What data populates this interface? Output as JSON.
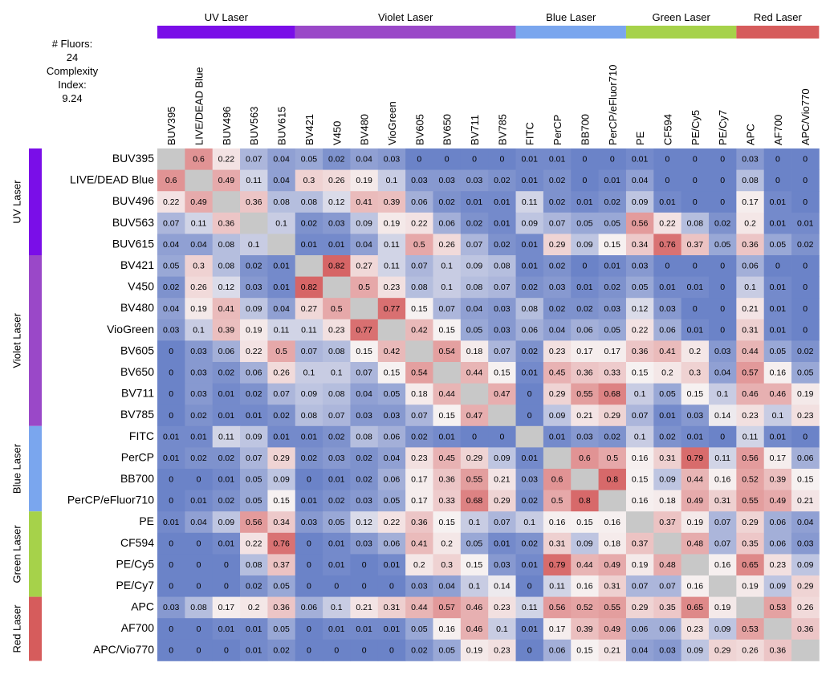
{
  "chart_data": {
    "type": "heatmap",
    "title": "",
    "info": {
      "fluors_label": "# Fluors:",
      "fluors_value": "24",
      "complexity_label_1": "Complexity",
      "complexity_label_2": "Index:",
      "complexity_value": "9.24"
    },
    "fluors": [
      "BUV395",
      "LIVE/DEAD Blue",
      "BUV496",
      "BUV563",
      "BUV615",
      "BV421",
      "V450",
      "BV480",
      "VioGreen",
      "BV605",
      "BV650",
      "BV711",
      "BV785",
      "FITC",
      "PerCP",
      "BB700",
      "PerCP/eFluor710",
      "PE",
      "CF594",
      "PE/Cy5",
      "PE/Cy7",
      "APC",
      "AF700",
      "APC/Vio770"
    ],
    "laser_groups": [
      {
        "name": "UV Laser",
        "start": 0,
        "end": 4,
        "color": "#7a0ee8"
      },
      {
        "name": "Violet Laser",
        "start": 5,
        "end": 12,
        "color": "#9a48c8"
      },
      {
        "name": "Blue Laser",
        "start": 13,
        "end": 16,
        "color": "#7aa6ee"
      },
      {
        "name": "Green Laser",
        "start": 17,
        "end": 20,
        "color": "#a6d24a"
      },
      {
        "name": "Red Laser",
        "start": 21,
        "end": 23,
        "color": "#d65c5c"
      }
    ],
    "diagonal_color": "#c8c8c8",
    "color_scale": {
      "low": "#6b83c8",
      "mid": "#f6f1f1",
      "high": "#d55f60",
      "min": 0,
      "mid_value": 0.15,
      "max": 0.85
    },
    "values": [
      [
        null,
        0.6,
        0.22,
        0.07,
        0.04,
        0.05,
        0.02,
        0.04,
        0.03,
        0,
        0,
        0,
        0,
        0.01,
        0.01,
        0,
        0,
        0.01,
        0,
        0,
        0,
        0.03,
        0,
        0
      ],
      [
        0.6,
        null,
        0.49,
        0.11,
        0.04,
        0.3,
        0.26,
        0.19,
        0.1,
        0.03,
        0.03,
        0.03,
        0.02,
        0.01,
        0.02,
        0,
        0.01,
        0.04,
        0,
        0,
        0,
        0.08,
        0,
        0
      ],
      [
        0.22,
        0.49,
        null,
        0.36,
        0.08,
        0.08,
        0.12,
        0.41,
        0.39,
        0.06,
        0.02,
        0.01,
        0.01,
        0.11,
        0.02,
        0.01,
        0.02,
        0.09,
        0.01,
        0,
        0,
        0.17,
        0.01,
        0
      ],
      [
        0.07,
        0.11,
        0.36,
        null,
        0.1,
        0.02,
        0.03,
        0.09,
        0.19,
        0.22,
        0.06,
        0.02,
        0.01,
        0.09,
        0.07,
        0.05,
        0.05,
        0.56,
        0.22,
        0.08,
        0.02,
        0.2,
        0.01,
        0.01
      ],
      [
        0.04,
        0.04,
        0.08,
        0.1,
        null,
        0.01,
        0.01,
        0.04,
        0.11,
        0.5,
        0.26,
        0.07,
        0.02,
        0.01,
        0.29,
        0.09,
        0.15,
        0.34,
        0.76,
        0.37,
        0.05,
        0.36,
        0.05,
        0.02
      ],
      [
        0.05,
        0.3,
        0.08,
        0.02,
        0.01,
        null,
        0.82,
        0.27,
        0.11,
        0.07,
        0.1,
        0.09,
        0.08,
        0.01,
        0.02,
        0,
        0.01,
        0.03,
        0,
        0,
        0,
        0.06,
        0,
        0
      ],
      [
        0.02,
        0.26,
        0.12,
        0.03,
        0.01,
        0.82,
        null,
        0.5,
        0.23,
        0.08,
        0.1,
        0.08,
        0.07,
        0.02,
        0.03,
        0.01,
        0.02,
        0.05,
        0.01,
        0.01,
        0,
        0.1,
        0.01,
        0
      ],
      [
        0.04,
        0.19,
        0.41,
        0.09,
        0.04,
        0.27,
        0.5,
        null,
        0.77,
        0.15,
        0.07,
        0.04,
        0.03,
        0.08,
        0.02,
        0.02,
        0.03,
        0.12,
        0.03,
        0,
        0,
        0.21,
        0.01,
        0
      ],
      [
        0.03,
        0.1,
        0.39,
        0.19,
        0.11,
        0.11,
        0.23,
        0.77,
        null,
        0.42,
        0.15,
        0.05,
        0.03,
        0.06,
        0.04,
        0.06,
        0.05,
        0.22,
        0.06,
        0.01,
        0,
        0.31,
        0.01,
        0
      ],
      [
        0,
        0.03,
        0.06,
        0.22,
        0.5,
        0.07,
        0.08,
        0.15,
        0.42,
        null,
        0.54,
        0.18,
        0.07,
        0.02,
        0.23,
        0.17,
        0.17,
        0.36,
        0.41,
        0.2,
        0.03,
        0.44,
        0.05,
        0.02
      ],
      [
        0,
        0.03,
        0.02,
        0.06,
        0.26,
        0.1,
        0.1,
        0.07,
        0.15,
        0.54,
        null,
        0.44,
        0.15,
        0.01,
        0.45,
        0.36,
        0.33,
        0.15,
        0.2,
        0.3,
        0.04,
        0.57,
        0.16,
        0.05
      ],
      [
        0,
        0.03,
        0.01,
        0.02,
        0.07,
        0.09,
        0.08,
        0.04,
        0.05,
        0.18,
        0.44,
        null,
        0.47,
        0,
        0.29,
        0.55,
        0.68,
        0.1,
        0.05,
        0.15,
        0.1,
        0.46,
        0.46,
        0.19
      ],
      [
        0,
        0.02,
        0.01,
        0.01,
        0.02,
        0.08,
        0.07,
        0.03,
        0.03,
        0.07,
        0.15,
        0.47,
        null,
        0,
        0.09,
        0.21,
        0.29,
        0.07,
        0.01,
        0.03,
        0.14,
        0.23,
        0.1,
        0.23
      ],
      [
        0.01,
        0.01,
        0.11,
        0.09,
        0.01,
        0.01,
        0.02,
        0.08,
        0.06,
        0.02,
        0.01,
        0,
        0,
        null,
        0.01,
        0.03,
        0.02,
        0.1,
        0.02,
        0.01,
        0,
        0.11,
        0.01,
        0
      ],
      [
        0.01,
        0.02,
        0.02,
        0.07,
        0.29,
        0.02,
        0.03,
        0.02,
        0.04,
        0.23,
        0.45,
        0.29,
        0.09,
        0.01,
        null,
        0.6,
        0.5,
        0.16,
        0.31,
        0.79,
        0.11,
        0.56,
        0.17,
        0.06
      ],
      [
        0,
        0,
        0.01,
        0.05,
        0.09,
        0,
        0.01,
        0.02,
        0.06,
        0.17,
        0.36,
        0.55,
        0.21,
        0.03,
        0.6,
        null,
        0.8,
        0.15,
        0.09,
        0.44,
        0.16,
        0.52,
        0.39,
        0.15
      ],
      [
        0,
        0.01,
        0.02,
        0.05,
        0.15,
        0.01,
        0.02,
        0.03,
        0.05,
        0.17,
        0.33,
        0.68,
        0.29,
        0.02,
        0.5,
        0.8,
        null,
        0.16,
        0.18,
        0.49,
        0.31,
        0.55,
        0.49,
        0.21
      ],
      [
        0.01,
        0.04,
        0.09,
        0.56,
        0.34,
        0.03,
        0.05,
        0.12,
        0.22,
        0.36,
        0.15,
        0.1,
        0.07,
        0.1,
        0.16,
        0.15,
        0.16,
        null,
        0.37,
        0.19,
        0.07,
        0.29,
        0.06,
        0.04
      ],
      [
        0,
        0,
        0.01,
        0.22,
        0.76,
        0,
        0.01,
        0.03,
        0.06,
        0.41,
        0.2,
        0.05,
        0.01,
        0.02,
        0.31,
        0.09,
        0.18,
        0.37,
        null,
        0.48,
        0.07,
        0.35,
        0.06,
        0.03
      ],
      [
        0,
        0,
        0,
        0.08,
        0.37,
        0,
        0.01,
        0,
        0.01,
        0.2,
        0.3,
        0.15,
        0.03,
        0.01,
        0.79,
        0.44,
        0.49,
        0.19,
        0.48,
        null,
        0.16,
        0.65,
        0.23,
        0.09
      ],
      [
        0,
        0,
        0,
        0.02,
        0.05,
        0,
        0,
        0,
        0,
        0.03,
        0.04,
        0.1,
        0.14,
        0,
        0.11,
        0.16,
        0.31,
        0.07,
        0.07,
        0.16,
        null,
        0.19,
        0.09,
        0.29
      ],
      [
        0.03,
        0.08,
        0.17,
        0.2,
        0.36,
        0.06,
        0.1,
        0.21,
        0.31,
        0.44,
        0.57,
        0.46,
        0.23,
        0.11,
        0.56,
        0.52,
        0.55,
        0.29,
        0.35,
        0.65,
        0.19,
        null,
        0.53,
        0.26
      ],
      [
        0,
        0,
        0.01,
        0.01,
        0.05,
        0,
        0.01,
        0.01,
        0.01,
        0.05,
        0.16,
        0.46,
        0.1,
        0.01,
        0.17,
        0.39,
        0.49,
        0.06,
        0.06,
        0.23,
        0.09,
        0.53,
        null,
        0.36
      ],
      [
        0,
        0,
        0,
        0.01,
        0.02,
        0,
        0,
        0,
        0,
        0.02,
        0.05,
        0.19,
        0.23,
        0,
        0.06,
        0.15,
        0.21,
        0.04,
        0.03,
        0.09,
        0.29,
        0.26,
        0.36,
        null
      ]
    ]
  }
}
